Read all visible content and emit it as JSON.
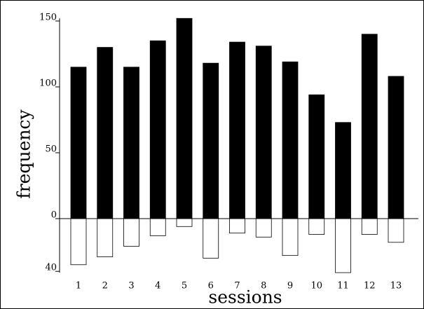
{
  "chart_data": {
    "type": "bar",
    "x_label": "sessions",
    "y_label": "frequency",
    "categories": [
      "1",
      "2",
      "3",
      "4",
      "5",
      "6",
      "7",
      "8",
      "9",
      "10",
      "11",
      "12",
      "13"
    ],
    "series": [
      {
        "color": "#000000",
        "values": [
          115,
          130,
          115,
          135,
          152,
          118,
          134,
          131,
          119,
          94,
          73,
          140,
          108
        ]
      },
      {
        "color": "#ffffff",
        "values": [
          -35,
          -29,
          -21,
          -13,
          -6,
          -30,
          -11,
          -14,
          -28,
          -12,
          -41,
          -12,
          -18
        ]
      }
    ],
    "ylim": [
      -41,
      152
    ],
    "yticks": [
      {
        "value": -40,
        "label": "40"
      },
      0,
      50,
      100,
      150
    ]
  }
}
